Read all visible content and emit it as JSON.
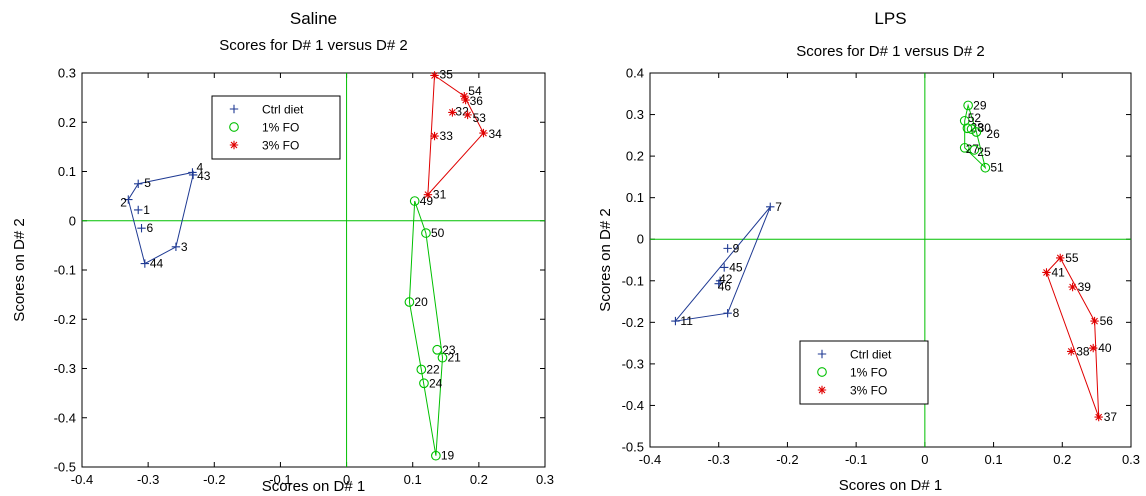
{
  "chart_data": [
    {
      "type": "scatter",
      "suptitle": "Saline",
      "title": "Scores for D# 1 versus D# 2",
      "xlabel": "Scores on D# 1",
      "ylabel": "Scores on D# 2",
      "xlim": [
        -0.4,
        0.3
      ],
      "ylim": [
        -0.5,
        0.3
      ],
      "xticks": [
        "-0.4",
        "-0.3",
        "-0.2",
        "-0.1",
        "0",
        "0.1",
        "0.2",
        "0.3"
      ],
      "yticks": [
        "-0.5",
        "-0.4",
        "-0.3",
        "-0.2",
        "-0.1",
        "0",
        "0.1",
        "0.2",
        "0.3"
      ],
      "reference_lines": {
        "x": 0,
        "y": 0
      },
      "grid": false,
      "legend_position": "top-center",
      "series": [
        {
          "name": "Ctrl diet",
          "color": "#1f3a93",
          "marker": "plus",
          "points": [
            {
              "label": "5",
              "x": -0.315,
              "y": 0.075
            },
            {
              "label": "4",
              "x": -0.233,
              "y": 0.098
            },
            {
              "label": "43",
              "x": -0.232,
              "y": 0.093
            },
            {
              "label": "2",
              "x": -0.33,
              "y": 0.043
            },
            {
              "label": "1",
              "x": -0.315,
              "y": 0.022
            },
            {
              "label": "6",
              "x": -0.31,
              "y": -0.015
            },
            {
              "label": "3",
              "x": -0.258,
              "y": -0.053
            },
            {
              "label": "44",
              "x": -0.305,
              "y": -0.087
            }
          ],
          "hull": [
            "5",
            "4",
            "43",
            "3",
            "44",
            "2"
          ]
        },
        {
          "name": "1% FO",
          "color": "#00c000",
          "marker": "circle",
          "points": [
            {
              "label": "49",
              "x": 0.103,
              "y": 0.04
            },
            {
              "label": "50",
              "x": 0.12,
              "y": -0.025
            },
            {
              "label": "20",
              "x": 0.095,
              "y": -0.165
            },
            {
              "label": "23",
              "x": 0.137,
              "y": -0.262
            },
            {
              "label": "21",
              "x": 0.145,
              "y": -0.278
            },
            {
              "label": "22",
              "x": 0.113,
              "y": -0.302
            },
            {
              "label": "24",
              "x": 0.117,
              "y": -0.33
            },
            {
              "label": "19",
              "x": 0.135,
              "y": -0.477
            }
          ],
          "hull": [
            "49",
            "50",
            "21",
            "19",
            "22",
            "20"
          ]
        },
        {
          "name": "3% FO",
          "color": "#e00000",
          "marker": "star",
          "points": [
            {
              "label": "35",
              "x": 0.133,
              "y": 0.295
            },
            {
              "label": "54",
              "x": 0.178,
              "y": 0.253
            },
            {
              "label": "36",
              "x": 0.18,
              "y": 0.245
            },
            {
              "label": "32",
              "x": 0.16,
              "y": 0.22
            },
            {
              "label": "53",
              "x": 0.183,
              "y": 0.215
            },
            {
              "label": "34",
              "x": 0.207,
              "y": 0.178
            },
            {
              "label": "33",
              "x": 0.133,
              "y": 0.172
            },
            {
              "label": "31",
              "x": 0.123,
              "y": 0.053
            }
          ],
          "hull": [
            "35",
            "54",
            "34",
            "31"
          ]
        }
      ]
    },
    {
      "type": "scatter",
      "suptitle": "LPS",
      "title": "Scores for D# 1 versus D# 2",
      "xlabel": "Scores on D# 1",
      "ylabel": "Scores on D# 2",
      "xlim": [
        -0.4,
        0.3
      ],
      "ylim": [
        -0.5,
        0.4
      ],
      "xticks": [
        "-0.4",
        "-0.3",
        "-0.2",
        "-0.1",
        "0",
        "0.1",
        "0.2",
        "0.3"
      ],
      "yticks": [
        "-0.5",
        "-0.4",
        "-0.3",
        "-0.2",
        "-0.1",
        "0",
        "0.1",
        "0.2",
        "0.3",
        "0.4"
      ],
      "reference_lines": {
        "x": 0,
        "y": 0
      },
      "grid": false,
      "legend_position": "bottom-center",
      "series": [
        {
          "name": "Ctrl diet",
          "color": "#1f3a93",
          "marker": "plus",
          "points": [
            {
              "label": "7",
              "x": -0.225,
              "y": 0.078
            },
            {
              "label": "9",
              "x": -0.287,
              "y": -0.022
            },
            {
              "label": "45",
              "x": -0.292,
              "y": -0.068
            },
            {
              "label": "42",
              "x": -0.298,
              "y": -0.1
            },
            {
              "label": "46",
              "x": -0.3,
              "y": -0.107
            },
            {
              "label": "8",
              "x": -0.287,
              "y": -0.178
            },
            {
              "label": "11",
              "x": -0.363,
              "y": -0.197
            }
          ],
          "hull": [
            "7",
            "8",
            "11"
          ]
        },
        {
          "name": "1% FO",
          "color": "#00c000",
          "marker": "circle",
          "points": [
            {
              "label": "29",
              "x": 0.063,
              "y": 0.322
            },
            {
              "label": "52",
              "x": 0.058,
              "y": 0.285
            },
            {
              "label": "28",
              "x": 0.062,
              "y": 0.267
            },
            {
              "label": "30",
              "x": 0.068,
              "y": 0.265
            },
            {
              "label": "26",
              "x": 0.075,
              "y": 0.258
            },
            {
              "label": "27",
              "x": 0.058,
              "y": 0.22
            },
            {
              "label": "25",
              "x": 0.072,
              "y": 0.215
            },
            {
              "label": "51",
              "x": 0.088,
              "y": 0.172
            }
          ],
          "hull": [
            "29",
            "26",
            "51",
            "27",
            "52"
          ]
        },
        {
          "name": "3% FO",
          "color": "#e00000",
          "marker": "star",
          "points": [
            {
              "label": "55",
              "x": 0.197,
              "y": -0.045
            },
            {
              "label": "41",
              "x": 0.177,
              "y": -0.08
            },
            {
              "label": "39",
              "x": 0.215,
              "y": -0.115
            },
            {
              "label": "56",
              "x": 0.247,
              "y": -0.197
            },
            {
              "label": "40",
              "x": 0.245,
              "y": -0.262
            },
            {
              "label": "38",
              "x": 0.213,
              "y": -0.27
            },
            {
              "label": "37",
              "x": 0.253,
              "y": -0.428
            }
          ],
          "hull": [
            "55",
            "56",
            "37",
            "41"
          ]
        }
      ]
    }
  ]
}
